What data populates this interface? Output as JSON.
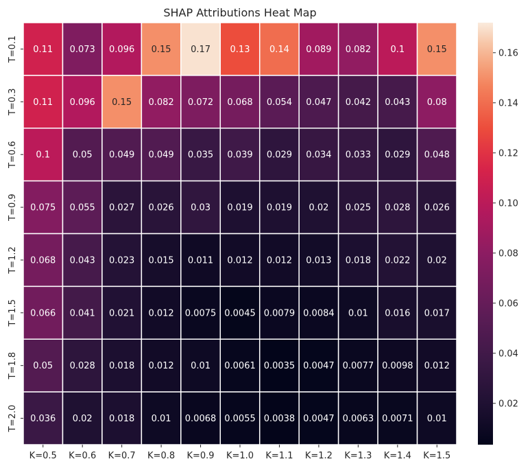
{
  "chart_data": {
    "type": "heatmap",
    "title": "SHAP Attributions Heat Map",
    "xlabel": "",
    "ylabel": "",
    "x_categories": [
      "K=0.5",
      "K=0.6",
      "K=0.7",
      "K=0.8",
      "K=0.9",
      "K=1.0",
      "K=1.1",
      "K=1.2",
      "K=1.3",
      "K=1.4",
      "K=1.5"
    ],
    "y_categories": [
      "T=0.1",
      "T=0.3",
      "T=0.6",
      "T=0.9",
      "T=1.2",
      "T=1.5",
      "T=1.8",
      "T=2.0"
    ],
    "values": [
      [
        0.11,
        0.073,
        0.096,
        0.15,
        0.17,
        0.13,
        0.14,
        0.089,
        0.082,
        0.1,
        0.15
      ],
      [
        0.11,
        0.096,
        0.15,
        0.082,
        0.072,
        0.068,
        0.054,
        0.047,
        0.042,
        0.043,
        0.08
      ],
      [
        0.1,
        0.05,
        0.049,
        0.049,
        0.035,
        0.039,
        0.029,
        0.034,
        0.033,
        0.029,
        0.048
      ],
      [
        0.075,
        0.055,
        0.027,
        0.026,
        0.03,
        0.019,
        0.019,
        0.02,
        0.025,
        0.028,
        0.026
      ],
      [
        0.068,
        0.043,
        0.023,
        0.015,
        0.011,
        0.012,
        0.012,
        0.013,
        0.018,
        0.022,
        0.02
      ],
      [
        0.066,
        0.041,
        0.021,
        0.012,
        0.0075,
        0.0045,
        0.0079,
        0.0084,
        0.01,
        0.016,
        0.017
      ],
      [
        0.05,
        0.028,
        0.018,
        0.012,
        0.01,
        0.0061,
        0.0035,
        0.0047,
        0.0077,
        0.0098,
        0.012
      ],
      [
        0.036,
        0.02,
        0.018,
        0.01,
        0.0068,
        0.0055,
        0.0038,
        0.0047,
        0.0063,
        0.0071,
        0.01
      ]
    ],
    "colorscale": "rocket",
    "colorbar": {
      "range": [
        0.0035,
        0.172
      ],
      "ticks": [
        0.02,
        0.04,
        0.06,
        0.08,
        0.1,
        0.12,
        0.14,
        0.16
      ],
      "tick_labels": [
        "0.02",
        "0.04",
        "0.06",
        "0.08",
        "0.10",
        "0.12",
        "0.14",
        "0.16"
      ]
    },
    "grid": false,
    "cell_border_color": "#ffffff",
    "annotation_dark_text_color": "#262626",
    "annotation_light_text_color": "#ffffff"
  }
}
